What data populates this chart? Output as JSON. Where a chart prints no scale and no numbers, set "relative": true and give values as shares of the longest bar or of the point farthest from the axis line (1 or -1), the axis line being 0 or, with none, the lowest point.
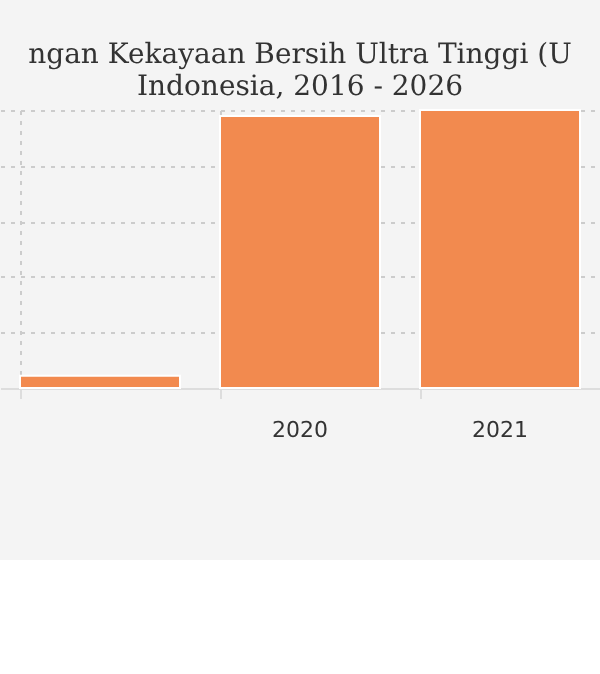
{
  "chart_data": {
    "type": "bar",
    "title": [
      "ngan Kekayaan Bersih Ultra Tinggi (U",
      "Indonesia, 2016 - 2026"
    ],
    "categories": [
      null,
      "2020",
      "2021"
    ],
    "values": [
      0.044,
      0.978,
      1
    ],
    "color": "#f28a4f",
    "relative": true,
    "grid": true
  }
}
